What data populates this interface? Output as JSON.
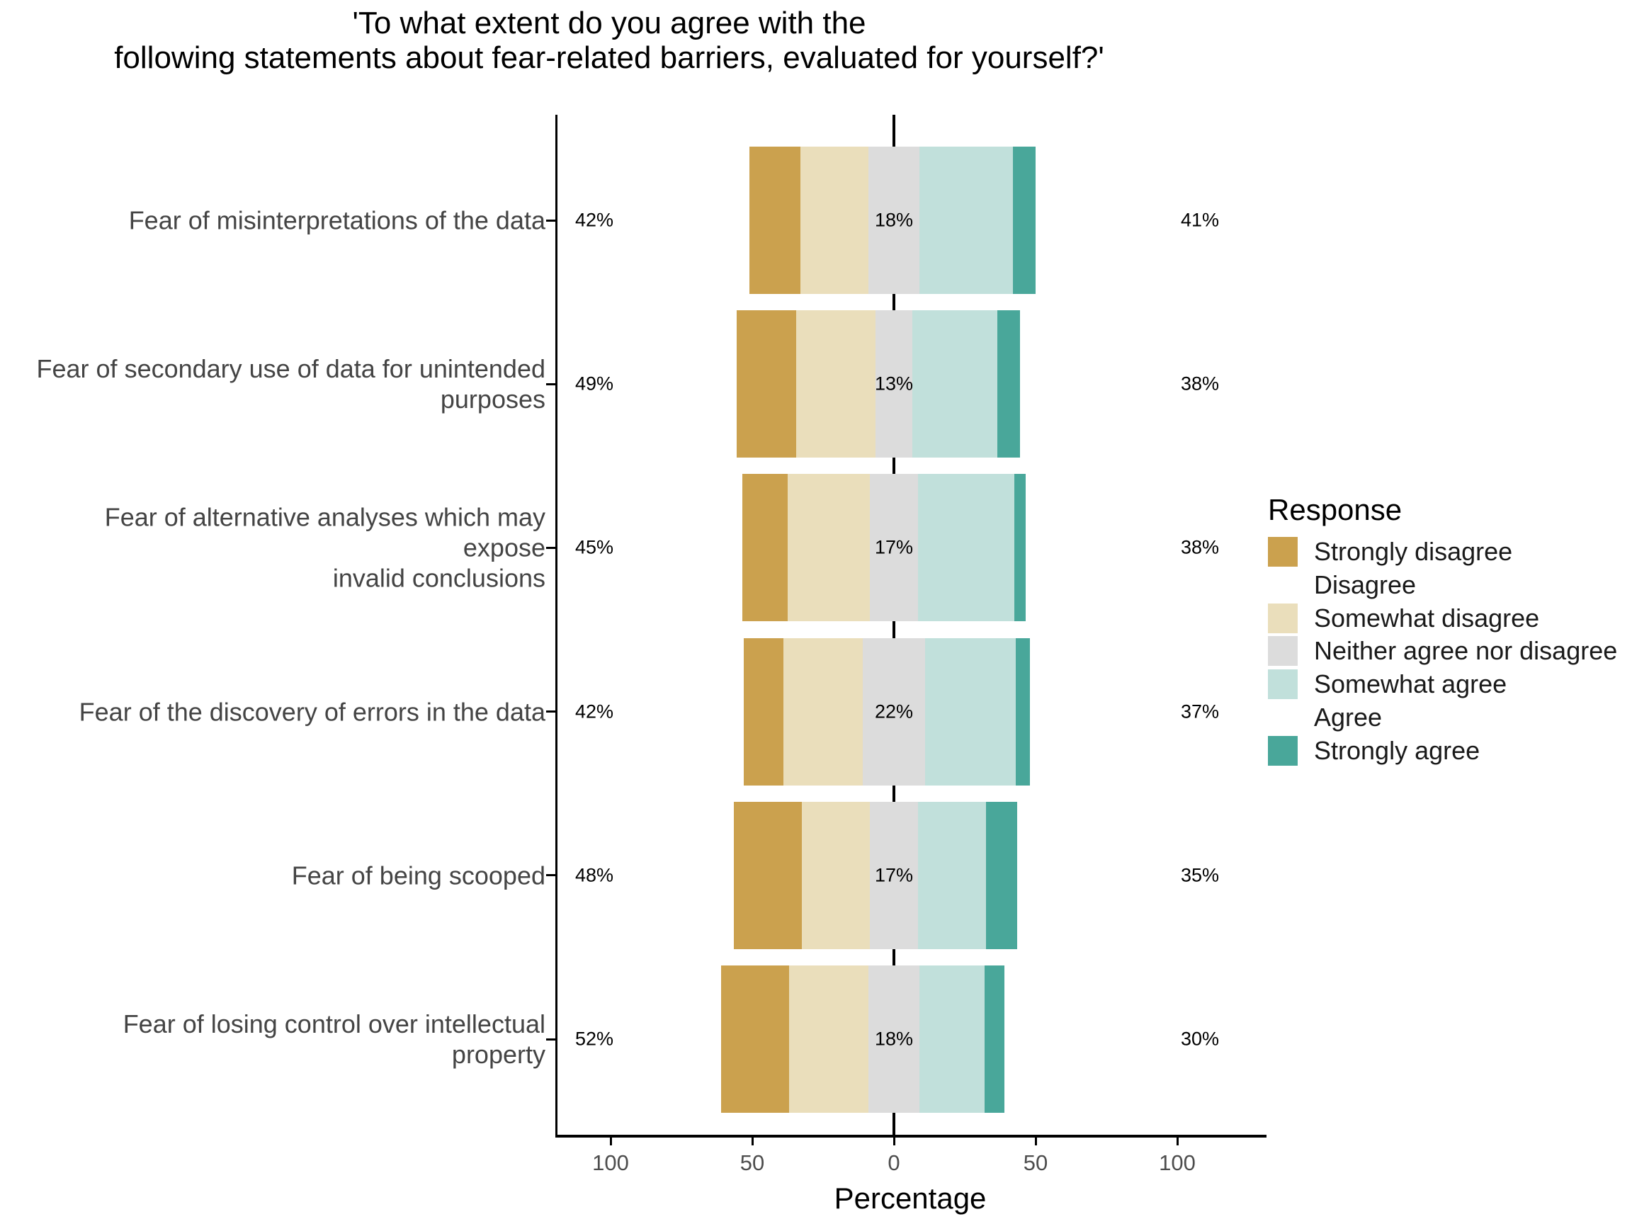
{
  "title": {
    "line1": "'To what extent do you agree with the",
    "line2": "following statements about fear-related barriers, evaluated for yourself?'"
  },
  "axes": {
    "x_title": "Percentage"
  },
  "legend": {
    "title": "Response",
    "items": [
      {
        "label": "Strongly disagree",
        "color": "#CBA14E"
      },
      {
        "label": "Disagree",
        "color": "#FFFFFF"
      },
      {
        "label": "Somewhat disagree",
        "color": "#EADEBB"
      },
      {
        "label": "Neither agree nor disagree",
        "color": "#DCDCDC"
      },
      {
        "label": "Somewhat agree",
        "color": "#C1E0DB"
      },
      {
        "label": "Agree",
        "color": "#FFFFFF"
      },
      {
        "label": "Strongly agree",
        "color": "#49A79A"
      }
    ]
  },
  "chart_data": {
    "type": "bar",
    "subtype": "diverging-stacked-horizontal-likert",
    "title": "'To what extent do you agree with the following statements about fear-related barriers, evaluated for yourself?'",
    "xlabel": "Percentage",
    "x_ticks": [
      {
        "value": -100,
        "label": "100"
      },
      {
        "value": -50,
        "label": "50"
      },
      {
        "value": 0,
        "label": "0"
      },
      {
        "value": 50,
        "label": "50"
      },
      {
        "value": 100,
        "label": "100"
      }
    ],
    "xlim": [
      -120,
      120
    ],
    "legend_position": "right",
    "response_levels": [
      "Strongly disagree",
      "Disagree",
      "Somewhat disagree",
      "Neither agree nor disagree",
      "Somewhat agree",
      "Agree",
      "Strongly agree"
    ],
    "note": "Neutral category is centered on 0; disagree levels extend left, agree levels right. Printed labels give total disagree / neutral / total agree.",
    "categories": [
      {
        "label": "Fear of misinterpretations of the data",
        "values": [
          18,
          0,
          24,
          18,
          33,
          0,
          8
        ],
        "left_label": "42%",
        "mid_label": "18%",
        "right_label": "41%"
      },
      {
        "label": "Fear of secondary use of data for unintended\npurposes",
        "values": [
          21,
          0,
          28,
          13,
          30,
          0,
          8
        ],
        "left_label": "49%",
        "mid_label": "13%",
        "right_label": "38%"
      },
      {
        "label": "Fear of alternative analyses which may expose\ninvalid conclusions",
        "values": [
          16,
          0,
          29,
          17,
          34,
          0,
          4
        ],
        "left_label": "45%",
        "mid_label": "17%",
        "right_label": "38%"
      },
      {
        "label": "Fear of the discovery of errors in the data",
        "values": [
          14,
          0,
          28,
          22,
          32,
          0,
          5
        ],
        "left_label": "42%",
        "mid_label": "22%",
        "right_label": "37%"
      },
      {
        "label": "Fear of being scooped",
        "values": [
          24,
          0,
          24,
          17,
          24,
          0,
          11
        ],
        "left_label": "48%",
        "mid_label": "17%",
        "right_label": "35%"
      },
      {
        "label": "Fear of losing control over intellectual property",
        "values": [
          24,
          0,
          28,
          18,
          23,
          0,
          7
        ],
        "left_label": "52%",
        "mid_label": "18%",
        "right_label": "30%"
      }
    ]
  }
}
